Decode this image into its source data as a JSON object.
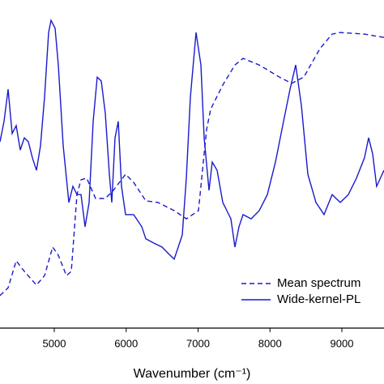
{
  "chart_data": {
    "type": "line",
    "xlabel": "Wavenumber (cm⁻¹)",
    "xlim": [
      4245,
      9586
    ],
    "ylim": [
      0,
      1
    ],
    "xticks": [
      5000,
      6000,
      7000,
      8000,
      9000
    ],
    "legend": "lower right",
    "series": [
      {
        "name": "Mean spectrum",
        "color": "#1a1acc",
        "dash": true,
        "x": [
          4245,
          4358,
          4470,
          4583,
          4752,
          4865,
          4977,
          5056,
          5169,
          5237,
          5315,
          5372,
          5451,
          5575,
          5710,
          5823,
          5992,
          6104,
          6273,
          6442,
          6668,
          6837,
          7006,
          7118,
          7175,
          7344,
          7513,
          7625,
          7851,
          8132,
          8301,
          8470,
          8696,
          8865,
          8977,
          9315,
          9586
        ],
        "values": [
          0.099,
          0.123,
          0.205,
          0.173,
          0.131,
          0.16,
          0.247,
          0.222,
          0.16,
          0.173,
          0.407,
          0.452,
          0.457,
          0.395,
          0.395,
          0.42,
          0.469,
          0.444,
          0.388,
          0.383,
          0.358,
          0.333,
          0.358,
          0.605,
          0.667,
          0.741,
          0.802,
          0.822,
          0.802,
          0.765,
          0.746,
          0.765,
          0.852,
          0.896,
          0.901,
          0.896,
          0.886
        ]
      },
      {
        "name": "Wide-kernel-PL",
        "color": "#1a1acc",
        "dash": false,
        "x": [
          4245,
          4301,
          4358,
          4414,
          4470,
          4527,
          4583,
          4639,
          4696,
          4752,
          4808,
          4865,
          4921,
          4955,
          5011,
          5056,
          5124,
          5203,
          5259,
          5315,
          5372,
          5428,
          5485,
          5541,
          5597,
          5654,
          5710,
          5766,
          5800,
          5845,
          5890,
          5935,
          5992,
          6104,
          6217,
          6273,
          6386,
          6499,
          6611,
          6668,
          6724,
          6780,
          6837,
          6893,
          6972,
          7040,
          7085,
          7152,
          7197,
          7265,
          7344,
          7400,
          7456,
          7513,
          7569,
          7625,
          7738,
          7851,
          7963,
          8076,
          8189,
          8279,
          8358,
          8437,
          8527,
          8640,
          8752,
          8865,
          8977,
          9090,
          9203,
          9315,
          9372,
          9428,
          9484,
          9586
        ],
        "values": [
          0.568,
          0.63,
          0.728,
          0.593,
          0.617,
          0.543,
          0.58,
          0.568,
          0.519,
          0.481,
          0.556,
          0.704,
          0.901,
          0.938,
          0.914,
          0.802,
          0.556,
          0.383,
          0.432,
          0.407,
          0.407,
          0.309,
          0.383,
          0.63,
          0.765,
          0.753,
          0.654,
          0.469,
          0.383,
          0.58,
          0.63,
          0.432,
          0.346,
          0.346,
          0.309,
          0.272,
          0.259,
          0.247,
          0.222,
          0.21,
          0.247,
          0.284,
          0.457,
          0.704,
          0.901,
          0.802,
          0.58,
          0.42,
          0.506,
          0.481,
          0.383,
          0.358,
          0.333,
          0.247,
          0.309,
          0.346,
          0.333,
          0.358,
          0.407,
          0.506,
          0.63,
          0.728,
          0.802,
          0.679,
          0.469,
          0.383,
          0.346,
          0.407,
          0.383,
          0.407,
          0.457,
          0.519,
          0.58,
          0.531,
          0.432,
          0.481
        ]
      }
    ]
  }
}
